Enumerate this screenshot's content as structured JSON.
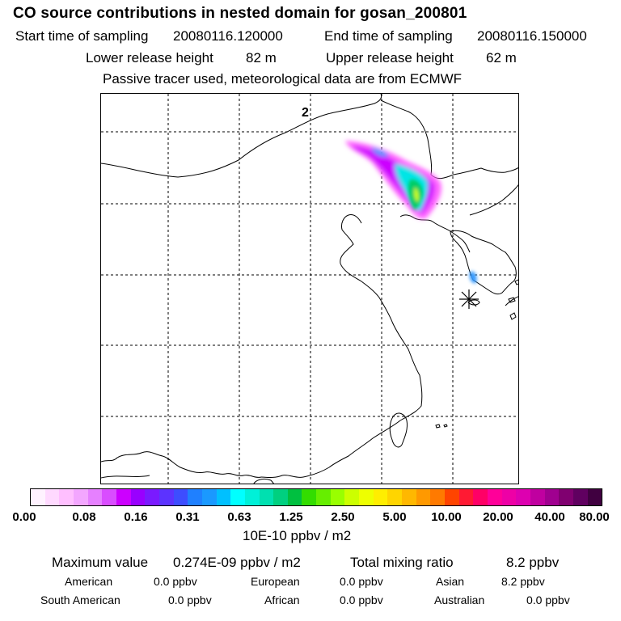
{
  "header": {
    "title": "CO  source contributions in nested domain for gosan_200801",
    "start_label": "Start time of sampling",
    "start_value": "20080116.120000",
    "end_label": "End time of sampling",
    "end_value": "20080116.150000",
    "lower_label": "Lower release height",
    "lower_value": "82 m",
    "upper_label": "Upper release height",
    "upper_value": "62 m",
    "note": "Passive tracer used, meteorological data are from ECMWF"
  },
  "map": {
    "panel_label": "2",
    "receptor_marker": "asterisk-icon",
    "plume_colors": [
      "#ff66ff",
      "#cc00ff",
      "#3399ff",
      "#00e5e5",
      "#00cc66",
      "#ccff00"
    ]
  },
  "colorbar": {
    "colors": [
      "#fff2ff",
      "#ffd9ff",
      "#ffbfff",
      "#f3a6ff",
      "#e680ff",
      "#d94dff",
      "#cc00ff",
      "#9900ff",
      "#7a1aff",
      "#5c33ff",
      "#3d4dff",
      "#1f80ff",
      "#1a99ff",
      "#00c0ff",
      "#00ffff",
      "#00f0d8",
      "#00e0b0",
      "#00d080",
      "#00c040",
      "#33dd00",
      "#66ee00",
      "#99ff00",
      "#ccff00",
      "#eeff00",
      "#ffee00",
      "#ffd500",
      "#ffb800",
      "#ff9900",
      "#ff7a00",
      "#ff4400",
      "#ff1a33",
      "#ff0066",
      "#ff0099",
      "#ee00a6",
      "#dd00b0",
      "#c000a0",
      "#a00090",
      "#800070",
      "#600060",
      "#400040"
    ],
    "ticks": [
      "0.00",
      "0.08",
      "0.16",
      "0.31",
      "0.63",
      "1.25",
      "2.50",
      "5.00",
      "10.00",
      "20.00",
      "40.00",
      "80.00"
    ],
    "unit": "10E-10 ppbv / m2"
  },
  "summary": {
    "max_label": "Maximum value",
    "max_value": "0.274E-09 ppbv / m2",
    "total_label": "Total mixing ratio",
    "total_value": "8.2 ppbv",
    "american_label": "American",
    "american_value": "0.0 ppbv",
    "european_label": "European",
    "european_value": "0.0 ppbv",
    "asian_label": "Asian",
    "asian_value": "8.2 ppbv",
    "south_american_label": "South American",
    "south_american_value": "0.0 ppbv",
    "african_label": "African",
    "african_value": "0.0 ppbv",
    "australian_label": "Australian",
    "australian_value": "0.0 ppbv"
  }
}
